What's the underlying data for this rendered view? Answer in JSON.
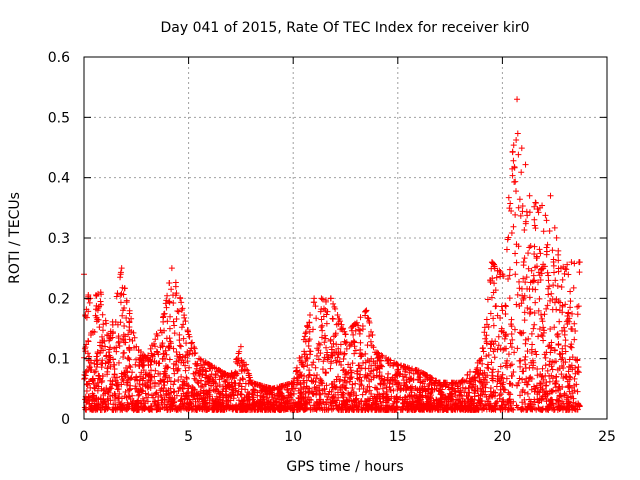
{
  "chart_data": {
    "type": "scatter",
    "title": "Day 041 of 2015, Rate Of TEC Index for receiver kir0",
    "xlabel": "GPS time / hours",
    "ylabel": "ROTI / TECUs",
    "xlim": [
      0,
      25
    ],
    "ylim": [
      0,
      0.6
    ],
    "x_ticks": [
      "0",
      "5",
      "10",
      "15",
      "20",
      "25"
    ],
    "y_ticks": [
      "0",
      "0.1",
      "0.2",
      "0.3",
      "0.4",
      "0.5",
      "0.6"
    ],
    "grid": true,
    "marker": "+",
    "series_color": "#ff0000",
    "series": [
      {
        "name": "ROTI",
        "description": "dense scatter of ROTI samples from ~0 to ~23.7 h",
        "envelope_hours": [
          0,
          0.3,
          0.8,
          1.2,
          1.8,
          2.5,
          3.0,
          3.8,
          4.2,
          4.6,
          5.0,
          5.5,
          6.0,
          7.0,
          7.5,
          8.0,
          9.0,
          10.0,
          11.0,
          11.8,
          12.5,
          13.5,
          14.0,
          15.0,
          16.0,
          17.0,
          18.0,
          19.0,
          19.5,
          20.0,
          20.7,
          21.3,
          21.8,
          22.3,
          22.8,
          23.3,
          23.7
        ],
        "envelope_max": [
          0.24,
          0.2,
          0.21,
          0.13,
          0.25,
          0.12,
          0.1,
          0.17,
          0.25,
          0.2,
          0.14,
          0.1,
          0.09,
          0.07,
          0.12,
          0.06,
          0.05,
          0.06,
          0.2,
          0.2,
          0.14,
          0.18,
          0.11,
          0.09,
          0.08,
          0.06,
          0.06,
          0.1,
          0.26,
          0.24,
          0.53,
          0.37,
          0.35,
          0.37,
          0.25,
          0.26,
          0.26
        ]
      }
    ]
  }
}
